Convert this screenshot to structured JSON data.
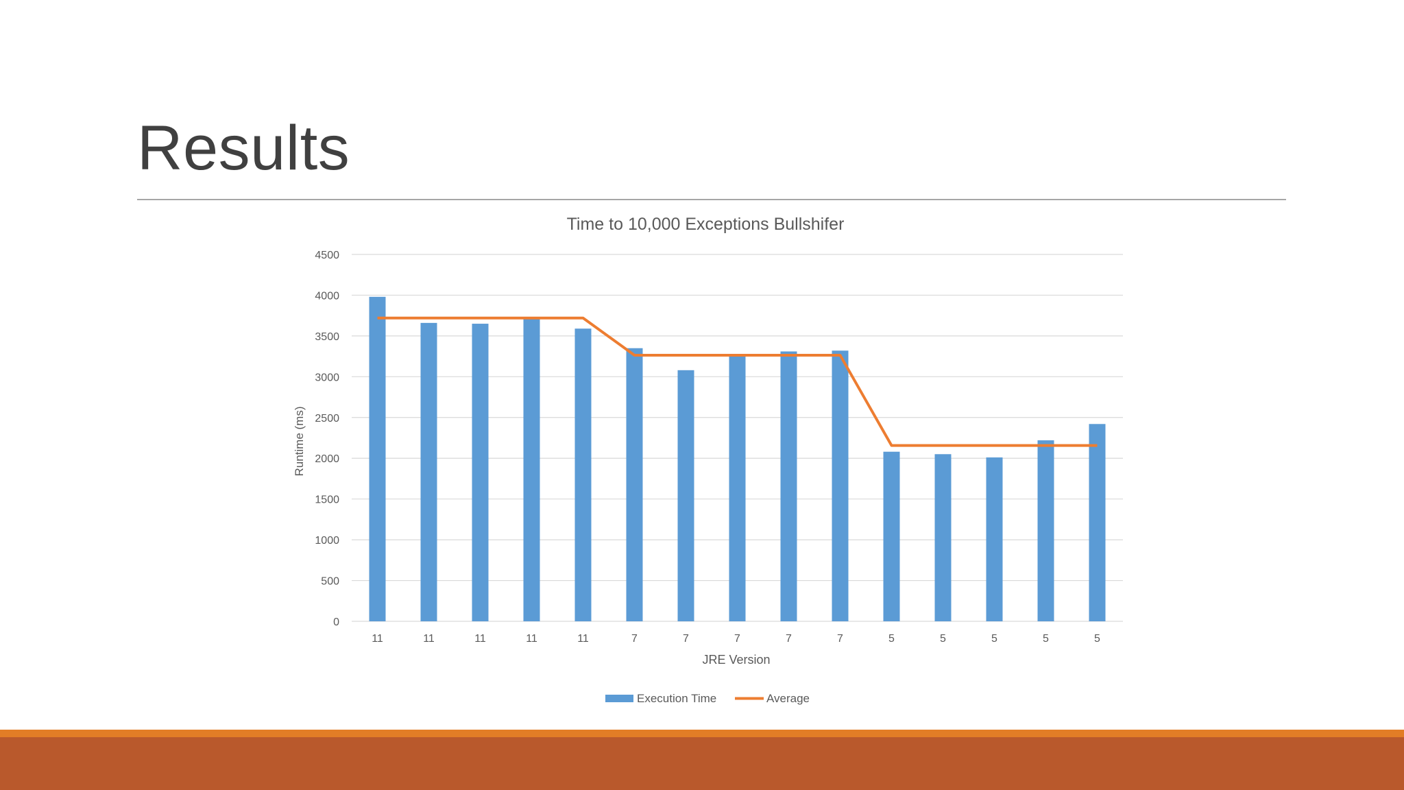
{
  "slide": {
    "title": "Results"
  },
  "colors": {
    "bar": "#5b9bd5",
    "average_line": "#ed7d31",
    "gridline": "#d9d9d9",
    "axis_text": "#595959",
    "footer_thin": "#e27d26",
    "footer_thick": "#b9592c"
  },
  "chart_data": {
    "type": "bar",
    "title": "Time to 10,000 Exceptions Bullshifer",
    "xlabel": "JRE Version",
    "ylabel": "Runtime (ms)",
    "ylim": [
      0,
      4500
    ],
    "yticks": [
      0,
      500,
      1000,
      1500,
      2000,
      2500,
      3000,
      3500,
      4000,
      4500
    ],
    "grid": true,
    "legend_position": "bottom",
    "categories": [
      "11",
      "11",
      "11",
      "11",
      "11",
      "7",
      "7",
      "7",
      "7",
      "7",
      "5",
      "5",
      "5",
      "5",
      "5"
    ],
    "series": [
      {
        "name": "Execution Time",
        "kind": "bar",
        "values": [
          3980,
          3660,
          3650,
          3720,
          3590,
          3350,
          3080,
          3260,
          3310,
          3320,
          2080,
          2050,
          2010,
          2220,
          2420
        ]
      },
      {
        "name": "Average",
        "kind": "line",
        "values": [
          3720,
          3720,
          3720,
          3720,
          3720,
          3264,
          3264,
          3264,
          3264,
          3264,
          2156,
          2156,
          2156,
          2156,
          2156
        ]
      }
    ]
  }
}
